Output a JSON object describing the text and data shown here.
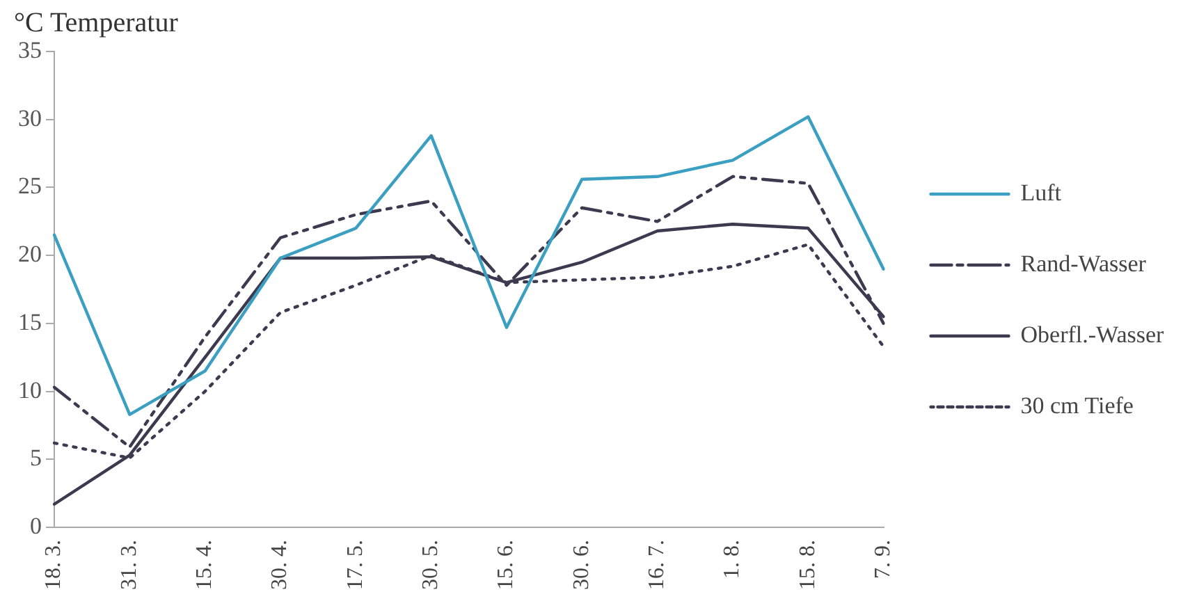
{
  "chart_data": {
    "type": "line",
    "ylabel": "°C Temperatur",
    "categories": [
      "18. 3.",
      "31. 3.",
      "15. 4.",
      "30. 4.",
      "17. 5.",
      "30. 5.",
      "15. 6.",
      "30. 6.",
      "16. 7.",
      "1. 8.",
      "15. 8.",
      "7. 9."
    ],
    "ylim": [
      0,
      35
    ],
    "yticks": [
      0,
      5,
      10,
      15,
      20,
      25,
      30,
      35
    ],
    "grid": false,
    "legend": "right",
    "marker": "none",
    "series": [
      {
        "name": "Luft",
        "color": "#3a9fc0",
        "line_style": "solid",
        "values": [
          21.5,
          8.3,
          11.5,
          19.8,
          22,
          28.8,
          14.7,
          25.6,
          25.8,
          27,
          30.2,
          19
        ]
      },
      {
        "name": "Rand-Wasser",
        "color": "#3d3a4f",
        "line_style": "dashed",
        "values": [
          10.3,
          5.9,
          14,
          21.3,
          23,
          24,
          17.8,
          23.5,
          22.5,
          25.8,
          25.3,
          15
        ]
      },
      {
        "name": "Oberfl.-Wasser",
        "color": "#3d3a4f",
        "line_style": "solid",
        "values": [
          1.7,
          5.3,
          12.5,
          19.8,
          19.8,
          19.9,
          18,
          19.5,
          21.8,
          22.3,
          22,
          15.5
        ]
      },
      {
        "name": "30 cm Tiefe",
        "color": "#3d3a4f",
        "line_style": "dotted",
        "values": [
          6.2,
          5.1,
          10,
          15.8,
          17.8,
          20,
          18,
          18.2,
          18.4,
          19.2,
          20.8,
          13.3
        ]
      }
    ]
  }
}
